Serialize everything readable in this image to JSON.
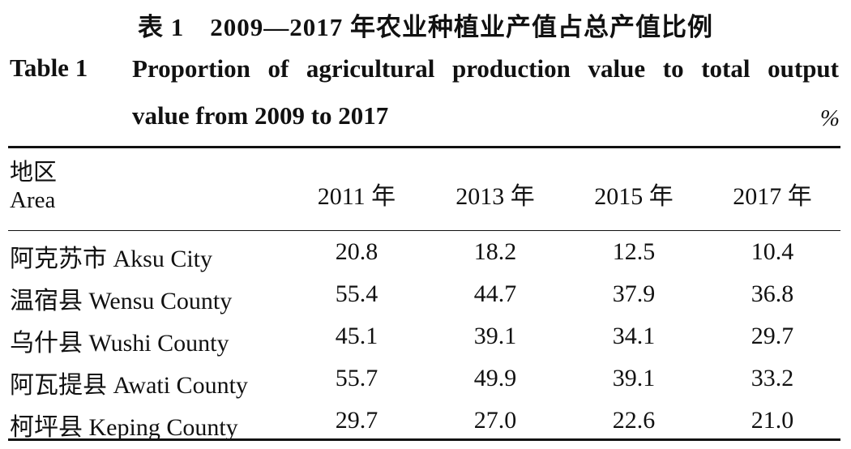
{
  "caption": {
    "cn_title": "表 1　2009—2017 年农业种植业产值占总产值比例",
    "en_label": "Table 1",
    "en_title_line1": "Proportion of agricultural production value to total output",
    "en_title_line2": "value from 2009 to 2017",
    "unit": "%"
  },
  "table": {
    "header_cn": "地区",
    "header_en": "Area",
    "years": [
      "2011 年",
      "2013 年",
      "2015 年",
      "2017 年"
    ],
    "rows": [
      {
        "area": "阿克苏市 Aksu City",
        "values": [
          "20.8",
          "18.2",
          "12.5",
          "10.4"
        ]
      },
      {
        "area": "温宿县 Wensu County",
        "values": [
          "55.4",
          "44.7",
          "37.9",
          "36.8"
        ]
      },
      {
        "area": "乌什县 Wushi County",
        "values": [
          "45.1",
          "39.1",
          "34.1",
          "29.7"
        ]
      },
      {
        "area": "阿瓦提县 Awati County",
        "values": [
          "55.7",
          "49.9",
          "39.1",
          "33.2"
        ]
      },
      {
        "area": "柯坪县 Keping County",
        "values": [
          "29.7",
          "27.0",
          "22.6",
          "21.0"
        ]
      }
    ]
  }
}
